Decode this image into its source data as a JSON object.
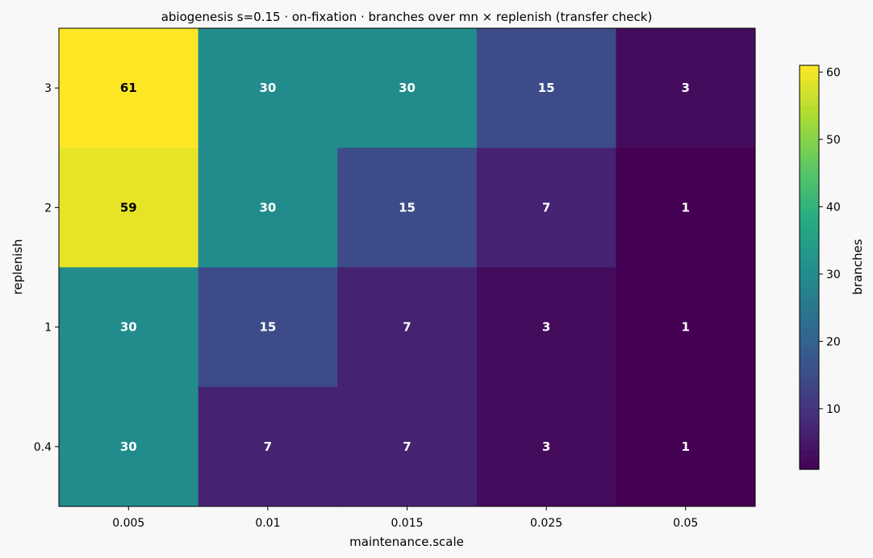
{
  "chart_data": {
    "type": "heatmap",
    "title": "abiogenesis s=0.15 · on-fixation · branches over mn × replenish (transfer check)",
    "xlabel": "maintenance.scale",
    "ylabel": "replenish",
    "x_categories": [
      "0.005",
      "0.01",
      "0.015",
      "0.025",
      "0.05"
    ],
    "y_categories": [
      "3",
      "2",
      "1",
      "0.4"
    ],
    "values": [
      [
        61,
        30,
        30,
        15,
        3
      ],
      [
        59,
        30,
        15,
        7,
        1
      ],
      [
        30,
        15,
        7,
        3,
        1
      ],
      [
        30,
        7,
        7,
        3,
        1
      ]
    ],
    "colormap": "viridis",
    "vmin": 1,
    "vmax": 61,
    "colorbar": {
      "label": "branches",
      "ticks": [
        10,
        20,
        30,
        40,
        50,
        60
      ]
    },
    "colors": {
      "background": "#f8f8f8",
      "text_light": "#ffffff",
      "text_dark": "#000000"
    }
  }
}
